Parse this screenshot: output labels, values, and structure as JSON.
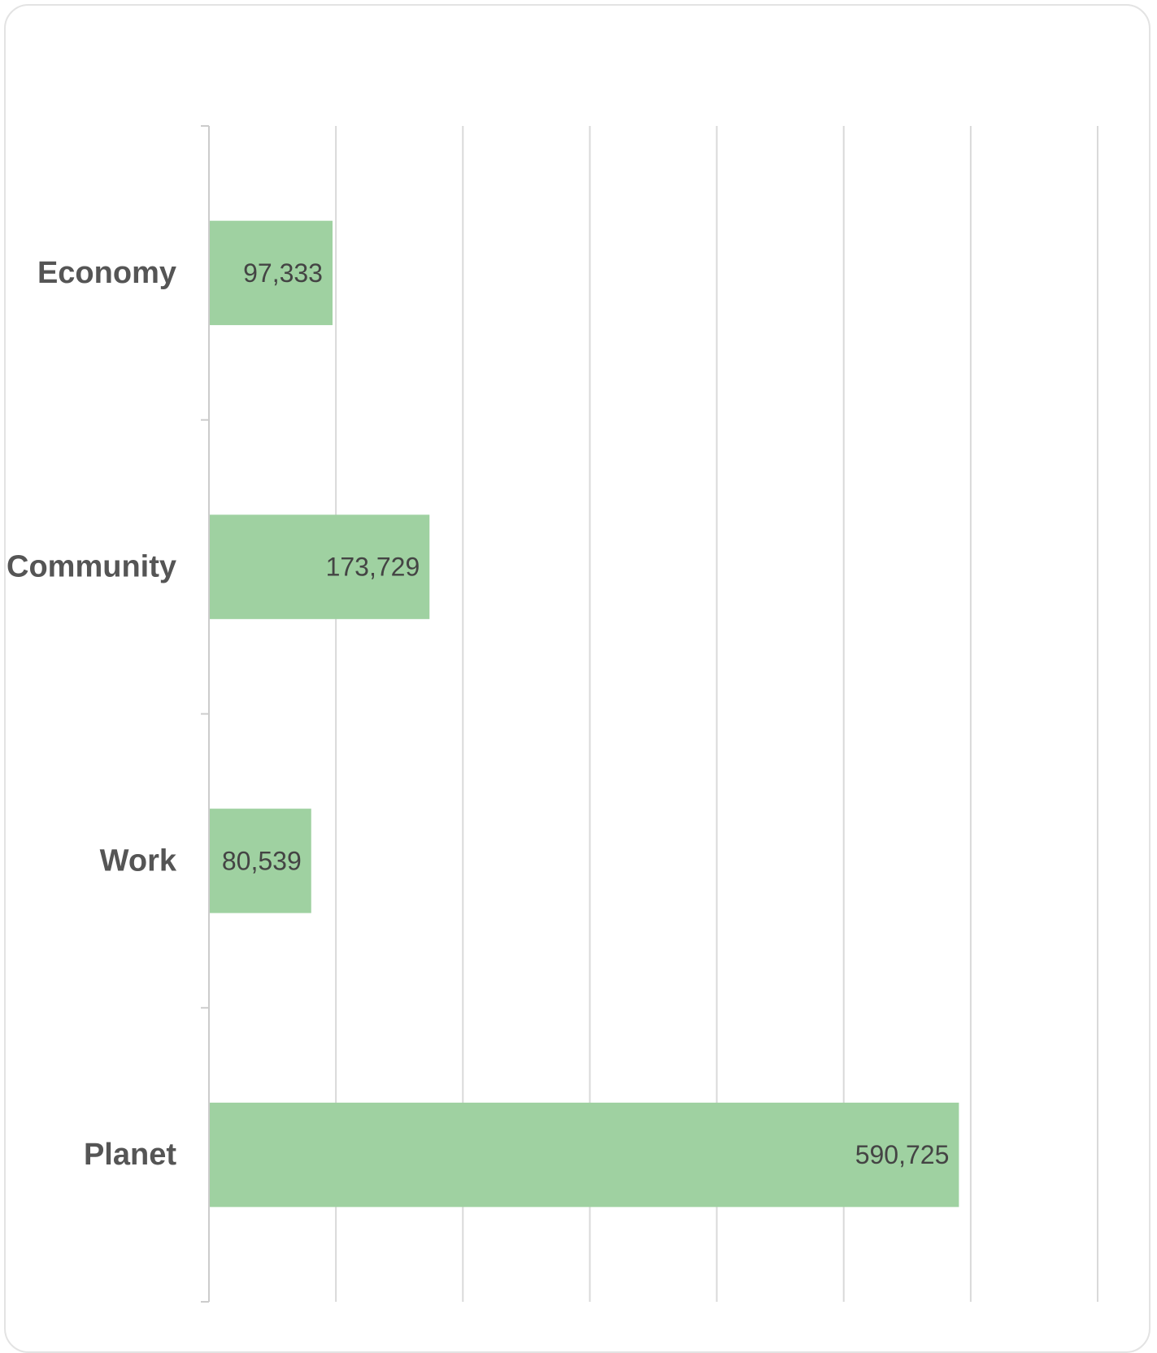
{
  "chart_data": {
    "type": "bar",
    "orientation": "horizontal",
    "categories": [
      "Economy",
      "Community",
      "Work",
      "Planet"
    ],
    "values": [
      97333,
      173729,
      80539,
      590725
    ],
    "value_labels": [
      "97,333",
      "173,729",
      "80,539",
      "590,725"
    ],
    "title": "",
    "xlabel": "",
    "ylabel": "",
    "xlim": [
      0,
      700000
    ],
    "x_gridline_step": 100000,
    "x_tick_labels_visible": false,
    "grid": true,
    "legend": "none",
    "colors": {
      "bar": "#9fd1a1",
      "grid": "#d9d9d9",
      "axis": "#cccccc",
      "category_text": "#555555",
      "value_text": "#444444",
      "card_border": "#e3e3e3"
    }
  }
}
